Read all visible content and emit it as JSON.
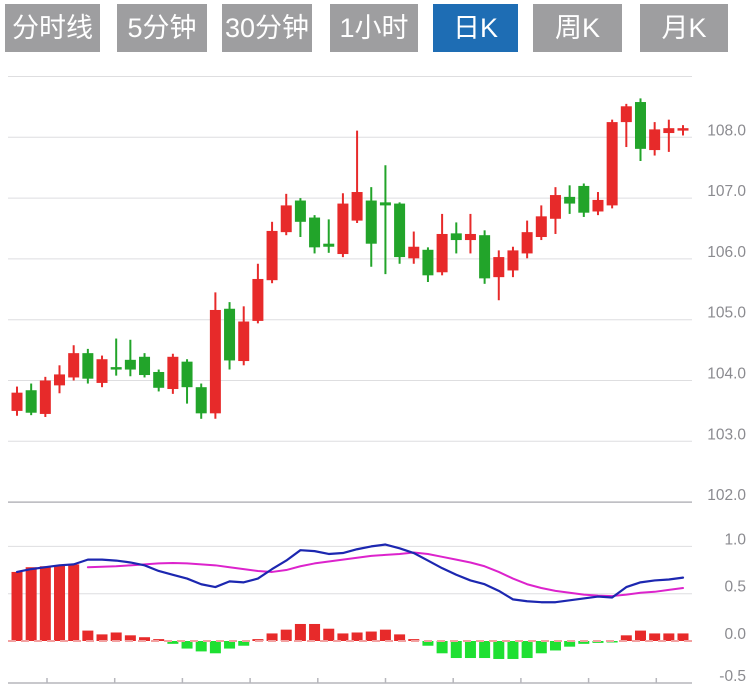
{
  "tabs": [
    {
      "label": "分时线",
      "active": false
    },
    {
      "label": "5分钟",
      "active": false
    },
    {
      "label": "30分钟",
      "active": false
    },
    {
      "label": "1小时",
      "active": false
    },
    {
      "label": "日K",
      "active": true
    },
    {
      "label": "周K",
      "active": false
    },
    {
      "label": "月K",
      "active": false
    }
  ],
  "price_axis": {
    "labels": [
      "108.0",
      "107.0",
      "106.0",
      "105.0",
      "104.0",
      "103.0",
      "102.0"
    ],
    "values": [
      108.0,
      107.0,
      106.0,
      105.0,
      104.0,
      103.0,
      102.0
    ]
  },
  "macd_axis": {
    "labels": [
      "1.0",
      "0.5",
      "0.0",
      "-0.5"
    ],
    "values": [
      1.0,
      0.5,
      0.0,
      -0.5
    ]
  },
  "chart_data": {
    "type": "candlestick_with_macd",
    "title": "",
    "convention": "chinese: red = up candle, green = down candle",
    "ylim": [
      102.0,
      109.0
    ],
    "macd_ylim": [
      -0.5,
      1.5
    ],
    "grid": true,
    "x_axis": {
      "labels": [],
      "unlabeled_tick_count": 10
    },
    "ohlc_order": "open,high,low,close",
    "candles": [
      [
        103.5,
        103.9,
        103.42,
        103.8
      ],
      [
        103.84,
        103.95,
        103.43,
        103.47
      ],
      [
        103.45,
        104.06,
        103.4,
        104.0
      ],
      [
        103.92,
        104.25,
        103.79,
        104.1
      ],
      [
        104.05,
        104.58,
        104.0,
        104.45
      ],
      [
        104.45,
        104.52,
        103.95,
        104.03
      ],
      [
        103.96,
        104.41,
        103.89,
        104.35
      ],
      [
        104.22,
        104.69,
        104.08,
        104.18
      ],
      [
        104.34,
        104.67,
        104.07,
        104.18
      ],
      [
        104.39,
        104.45,
        104.05,
        104.09
      ],
      [
        104.14,
        104.18,
        103.82,
        103.88
      ],
      [
        103.86,
        104.44,
        103.78,
        104.39
      ],
      [
        104.31,
        104.35,
        103.62,
        103.89
      ],
      [
        103.89,
        103.95,
        103.37,
        103.46
      ],
      [
        103.46,
        105.45,
        103.37,
        105.16
      ],
      [
        105.18,
        105.29,
        104.18,
        104.33
      ],
      [
        104.32,
        105.22,
        104.25,
        104.97
      ],
      [
        104.98,
        105.92,
        104.94,
        105.67
      ],
      [
        105.65,
        106.61,
        105.6,
        106.46
      ],
      [
        106.44,
        107.07,
        106.39,
        106.88
      ],
      [
        106.96,
        107.0,
        106.36,
        106.61
      ],
      [
        106.68,
        106.72,
        106.09,
        106.19
      ],
      [
        106.25,
        106.65,
        106.1,
        106.2
      ],
      [
        106.08,
        107.08,
        106.03,
        106.91
      ],
      [
        106.63,
        108.11,
        106.59,
        107.1
      ],
      [
        106.96,
        107.18,
        105.87,
        106.25
      ],
      [
        106.93,
        107.54,
        105.75,
        106.88
      ],
      [
        106.91,
        106.93,
        105.92,
        106.03
      ],
      [
        106.01,
        106.45,
        105.92,
        106.2
      ],
      [
        106.15,
        106.19,
        105.62,
        105.73
      ],
      [
        105.78,
        106.74,
        105.73,
        106.41
      ],
      [
        106.42,
        106.6,
        106.09,
        106.31
      ],
      [
        106.31,
        106.74,
        106.09,
        106.41
      ],
      [
        106.39,
        106.47,
        105.59,
        105.68
      ],
      [
        105.7,
        106.14,
        105.32,
        106.03
      ],
      [
        105.81,
        106.2,
        105.7,
        106.14
      ],
      [
        106.09,
        106.63,
        106.01,
        106.44
      ],
      [
        106.36,
        106.88,
        106.31,
        106.7
      ],
      [
        106.66,
        107.18,
        106.41,
        107.05
      ],
      [
        107.02,
        107.21,
        106.74,
        106.91
      ],
      [
        107.2,
        107.24,
        106.69,
        106.76
      ],
      [
        106.78,
        107.1,
        106.72,
        106.97
      ],
      [
        106.88,
        108.29,
        106.83,
        108.25
      ],
      [
        108.25,
        108.55,
        107.84,
        108.51
      ],
      [
        108.58,
        108.64,
        107.61,
        107.81
      ],
      [
        107.79,
        108.25,
        107.7,
        108.13
      ],
      [
        108.07,
        108.29,
        107.76,
        108.15
      ],
      [
        108.11,
        108.2,
        108.03,
        108.15
      ]
    ],
    "macd": {
      "dif": [
        0.73,
        0.76,
        0.78,
        0.8,
        0.81,
        0.86,
        0.86,
        0.85,
        0.83,
        0.8,
        0.74,
        0.7,
        0.66,
        0.6,
        0.57,
        0.63,
        0.62,
        0.66,
        0.76,
        0.85,
        0.96,
        0.95,
        0.92,
        0.93,
        0.97,
        1.0,
        1.02,
        0.98,
        0.93,
        0.85,
        0.77,
        0.7,
        0.64,
        0.6,
        0.53,
        0.44,
        0.42,
        0.41,
        0.41,
        0.43,
        0.45,
        0.47,
        0.46,
        0.57,
        0.62,
        0.64,
        0.65,
        0.67
      ],
      "dea": [
        null,
        null,
        null,
        null,
        null,
        0.78,
        0.785,
        0.79,
        0.8,
        0.81,
        0.82,
        0.825,
        0.82,
        0.81,
        0.8,
        0.78,
        0.76,
        0.74,
        0.73,
        0.75,
        0.79,
        0.82,
        0.84,
        0.86,
        0.88,
        0.9,
        0.91,
        0.92,
        0.935,
        0.92,
        0.89,
        0.86,
        0.83,
        0.79,
        0.73,
        0.66,
        0.6,
        0.56,
        0.53,
        0.51,
        0.49,
        0.48,
        0.475,
        0.49,
        0.51,
        0.52,
        0.54,
        0.56
      ],
      "histogram": [
        0.73,
        0.78,
        0.79,
        0.8,
        0.81,
        0.11,
        0.07,
        0.09,
        0.06,
        0.04,
        0.02,
        -0.03,
        -0.08,
        -0.11,
        -0.13,
        -0.08,
        -0.05,
        0.02,
        0.08,
        0.12,
        0.18,
        0.18,
        0.13,
        0.08,
        0.09,
        0.1,
        0.12,
        0.07,
        0.02,
        -0.05,
        -0.13,
        -0.18,
        -0.18,
        -0.18,
        -0.19,
        -0.19,
        -0.18,
        -0.13,
        -0.1,
        -0.06,
        -0.03,
        -0.02,
        -0.015,
        0.06,
        0.11,
        0.08,
        0.08,
        0.08
      ]
    }
  },
  "colors": {
    "up_candle": "#e72a2a",
    "down_candle": "#22a42a",
    "hist_positive": "#e72a2a",
    "hist_negative": "#1ee032",
    "dif_line": "#1c27b0",
    "dea_line": "#dc23cc",
    "grid_light": "#dedee0",
    "grid_dark": "#b6b6bc",
    "zero_dashed": "#f2a0a0",
    "axis_text": "#8b8b90",
    "tab_inactive_bg": "#9e9ea0",
    "tab_active_bg": "#1e6db4",
    "tab_text": "#ffffff",
    "background": "#ffffff"
  }
}
